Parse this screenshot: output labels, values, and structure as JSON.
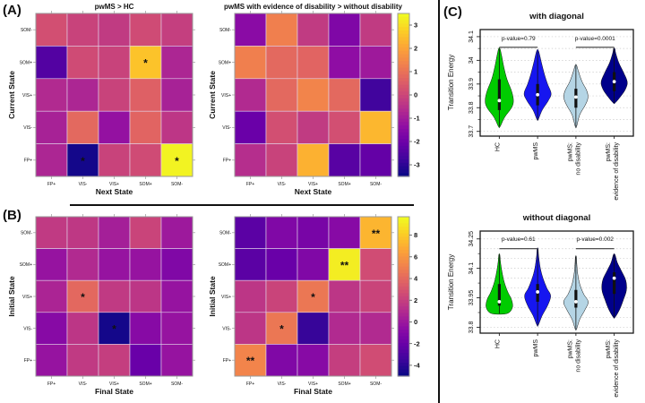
{
  "figure": {
    "panel_a_label": "(A)",
    "panel_b_label": "(B)",
    "panel_c_label": "(C)"
  },
  "colors": {
    "pvalue_text": "#ee1111",
    "significance_line": "#3a3a3a",
    "star": "#ffffff",
    "frame_gray": "#9a9a9a",
    "violin_frame": "#1a1a1a",
    "grid_dotted": "#c8c8c8"
  },
  "colormap": [
    "#0d0887",
    "#41049d",
    "#6a00a8",
    "#8f0da4",
    "#b12a90",
    "#cc4778",
    "#e16462",
    "#f2844b",
    "#fca636",
    "#fcce25",
    "#f0f921"
  ],
  "chart_data": [
    {
      "id": "A1",
      "type": "heatmap",
      "title": "pwMS > HC",
      "xlabel": "Next State",
      "ylabel": "Current State",
      "col_labels": [
        "FP+",
        "VIS-",
        "VIS+",
        "SOM+",
        "SOM-"
      ],
      "row_labels": [
        "SOM-",
        "SOM+",
        "VIS+",
        "VIS-",
        "FP+"
      ],
      "vmin": -3.5,
      "vmax": 3.5,
      "values": [
        [
          0.2,
          -0.1,
          -0.3,
          0.1,
          -0.2
        ],
        [
          -2.5,
          0.1,
          -0.1,
          2.6,
          -0.8
        ],
        [
          -0.7,
          -0.8,
          -0.1,
          0.6,
          -0.9
        ],
        [
          -0.9,
          0.8,
          -1.3,
          0.7,
          -0.4
        ],
        [
          -0.8,
          -3.4,
          -0.1,
          0.1,
          3.4
        ]
      ],
      "stars": [
        [
          1,
          3,
          "*"
        ],
        [
          4,
          1,
          "*"
        ],
        [
          4,
          4,
          "*"
        ]
      ]
    },
    {
      "id": "A2",
      "type": "heatmap",
      "title": "pwMS with evidence of disability > without disability",
      "xlabel": "Next State",
      "ylabel": "Current State",
      "col_labels": [
        "FP+",
        "VIS-",
        "VIS+",
        "SOM+",
        "SOM-"
      ],
      "row_labels": [
        "SOM-",
        "SOM+",
        "VIS+",
        "VIS-",
        "FP+"
      ],
      "vmin": -3.5,
      "vmax": 3.5,
      "values": [
        [
          -1.5,
          1.3,
          -0.3,
          -1.7,
          -0.3
        ],
        [
          1.3,
          0.8,
          0.7,
          -1.4,
          -1.1
        ],
        [
          -0.7,
          0.8,
          1.4,
          0.8,
          -2.8
        ],
        [
          -2.1,
          0.2,
          -0.3,
          0.2,
          2.4
        ],
        [
          -0.6,
          -0.1,
          2.3,
          -2.4,
          -2.2
        ]
      ],
      "stars": []
    },
    {
      "id": "B1",
      "type": "heatmap",
      "title": "",
      "xlabel": "Final State",
      "ylabel": "Initial State",
      "col_labels": [
        "FP+",
        "VIS-",
        "VIS+",
        "SOM+",
        "SOM-"
      ],
      "row_labels": [
        "SOM-",
        "SOM+",
        "VIS+",
        "VIS-",
        "FP+"
      ],
      "vmin": -5,
      "vmax": 9.7,
      "values": [
        [
          1.7,
          1.6,
          0.3,
          2.2,
          0.0
        ],
        [
          -0.3,
          0.9,
          -0.3,
          -0.3,
          -1.2
        ],
        [
          0.6,
          4.0,
          1.7,
          1.5,
          -0.3
        ],
        [
          -0.9,
          1.5,
          -4.8,
          -0.9,
          -0.3
        ],
        [
          -0.3,
          1.7,
          1.9,
          -2.1,
          -0.3
        ]
      ],
      "stars": [
        [
          2,
          1,
          "*"
        ],
        [
          3,
          2,
          "*"
        ]
      ]
    },
    {
      "id": "B2",
      "type": "heatmap",
      "title": "",
      "xlabel": "Final State",
      "ylabel": "Initial State",
      "col_labels": [
        "FP+",
        "VIS-",
        "VIS+",
        "SOM+",
        "SOM-"
      ],
      "row_labels": [
        "SOM-",
        "SOM+",
        "VIS+",
        "VIS-",
        "FP+"
      ],
      "vmin": -5,
      "vmax": 9.7,
      "values": [
        [
          -2.6,
          -1.2,
          -1.5,
          -0.9,
          7.3
        ],
        [
          -2.6,
          -2.1,
          -1.2,
          9.3,
          2.6
        ],
        [
          1.5,
          2.2,
          4.7,
          1.5,
          2.2
        ],
        [
          1.5,
          4.7,
          -3.8,
          0.9,
          0.9
        ],
        [
          5.3,
          -1.2,
          -0.9,
          1.9,
          2.6
        ]
      ],
      "stars": [
        [
          0,
          4,
          "**"
        ],
        [
          1,
          3,
          "**"
        ],
        [
          2,
          2,
          "*"
        ],
        [
          3,
          1,
          "*"
        ],
        [
          4,
          0,
          "**"
        ]
      ]
    },
    {
      "id": "CB_A",
      "type": "colorbar",
      "vmin": -3.5,
      "vmax": 3.5,
      "ticks": [
        3,
        2,
        1,
        0,
        -1,
        -2,
        -3
      ],
      "tick_labels": [
        "3",
        "2",
        "1",
        "0",
        "-1",
        "-2",
        "-3"
      ]
    },
    {
      "id": "CB_B",
      "type": "colorbar",
      "vmin": -5,
      "vmax": 9.7,
      "ticks": [
        8,
        6,
        4,
        2,
        0,
        -2,
        -4
      ],
      "tick_labels": [
        "8",
        "6",
        "4",
        "2",
        "0",
        "-2",
        "-4"
      ]
    },
    {
      "id": "C1",
      "type": "violin",
      "title": "with diagonal",
      "ylabel": "Transition Energy",
      "ylim": [
        33.68,
        34.13
      ],
      "ytick_vals": [
        33.7,
        33.8,
        33.9,
        34,
        34.1
      ],
      "ytick_labels": [
        "33.7",
        "33.8",
        "33.9",
        "34",
        "34.1"
      ],
      "grid_start": 33.7,
      "grid_step": 0.05,
      "violins": [
        {
          "label_lines": [
            "HC"
          ],
          "color": "#00cc00",
          "profile": [
            [
              33.72,
              0.05
            ],
            [
              33.76,
              0.35
            ],
            [
              33.8,
              0.8
            ],
            [
              33.83,
              0.92
            ],
            [
              33.87,
              0.8
            ],
            [
              33.92,
              0.5
            ],
            [
              33.97,
              0.3
            ],
            [
              34.02,
              0.15
            ],
            [
              34.05,
              0.04
            ]
          ],
          "q1": 33.79,
          "q3": 33.92,
          "median": 33.83
        },
        {
          "label_lines": [
            "pwMS"
          ],
          "color": "#1616f0",
          "profile": [
            [
              33.75,
              0.04
            ],
            [
              33.79,
              0.3
            ],
            [
              33.83,
              0.7
            ],
            [
              33.86,
              0.88
            ],
            [
              33.9,
              0.65
            ],
            [
              33.94,
              0.45
            ],
            [
              33.99,
              0.25
            ],
            [
              34.04,
              0.06
            ]
          ],
          "q1": 33.81,
          "q3": 33.9,
          "median": 33.855
        },
        {
          "label_lines": [
            "pwMS:",
            "no disability"
          ],
          "color": "#b5d5e5",
          "profile": [
            [
              33.72,
              0.04
            ],
            [
              33.77,
              0.25
            ],
            [
              33.81,
              0.6
            ],
            [
              33.84,
              0.78
            ],
            [
              33.87,
              0.72
            ],
            [
              33.91,
              0.4
            ],
            [
              33.95,
              0.18
            ],
            [
              33.98,
              0.04
            ]
          ],
          "q1": 33.8,
          "q3": 33.88,
          "median": 33.845
        },
        {
          "label_lines": [
            "pwMS:",
            "evidence of disability"
          ],
          "color": "#00008b",
          "profile": [
            [
              33.82,
              0.06
            ],
            [
              33.85,
              0.45
            ],
            [
              33.88,
              0.75
            ],
            [
              33.91,
              0.85
            ],
            [
              33.95,
              0.6
            ],
            [
              33.99,
              0.3
            ],
            [
              34.03,
              0.1
            ],
            [
              34.05,
              0.04
            ]
          ],
          "q1": 33.87,
          "q3": 33.95,
          "median": 33.91
        }
      ],
      "pvalues": [
        {
          "text": "p-value=0.79",
          "pair": [
            0,
            1
          ],
          "line_y": 34.055,
          "text_y": 34.085
        },
        {
          "text": "p-value=0.0001",
          "pair": [
            2,
            3
          ],
          "line_y": 34.055,
          "text_y": 34.085
        }
      ]
    },
    {
      "id": "C2",
      "type": "violin",
      "title": "without diagonal",
      "ylabel": "Transition Energy",
      "ylim": [
        33.77,
        34.29
      ],
      "ytick_vals": [
        33.8,
        33.95,
        34.1,
        34.25
      ],
      "ytick_labels": [
        "33.8",
        "33.95",
        "34.1",
        "34.25"
      ],
      "grid_start": 33.8,
      "grid_step": 0.05,
      "violins": [
        {
          "label_lines": [
            "HC"
          ],
          "color": "#00cc00",
          "profile": [
            [
              33.87,
              0.5
            ],
            [
              33.9,
              0.85
            ],
            [
              33.94,
              0.8
            ],
            [
              33.98,
              0.55
            ],
            [
              34.03,
              0.32
            ],
            [
              34.08,
              0.18
            ],
            [
              34.13,
              0.08
            ],
            [
              34.17,
              0.03
            ]
          ],
          "q1": 33.91,
          "q3": 34.02,
          "median": 33.93
        },
        {
          "label_lines": [
            "pwMS"
          ],
          "color": "#1616f0",
          "profile": [
            [
              33.81,
              0.04
            ],
            [
              33.86,
              0.3
            ],
            [
              33.91,
              0.65
            ],
            [
              33.96,
              0.85
            ],
            [
              34.0,
              0.6
            ],
            [
              34.05,
              0.35
            ],
            [
              34.1,
              0.18
            ],
            [
              34.16,
              0.07
            ],
            [
              34.2,
              0.03
            ]
          ],
          "q1": 33.93,
          "q3": 34.02,
          "median": 33.98
        },
        {
          "label_lines": [
            "pwMS:",
            "no disability"
          ],
          "color": "#b5d5e5",
          "profile": [
            [
              33.79,
              0.04
            ],
            [
              33.84,
              0.25
            ],
            [
              33.89,
              0.6
            ],
            [
              33.93,
              0.8
            ],
            [
              33.97,
              0.5
            ],
            [
              34.02,
              0.25
            ],
            [
              34.07,
              0.12
            ],
            [
              34.12,
              0.06
            ],
            [
              34.16,
              0.03
            ]
          ],
          "q1": 33.9,
          "q3": 33.99,
          "median": 33.93
        },
        {
          "label_lines": [
            "pwMS:",
            "evidence of disability"
          ],
          "color": "#00008b",
          "profile": [
            [
              33.85,
              0.05
            ],
            [
              33.89,
              0.35
            ],
            [
              33.94,
              0.6
            ],
            [
              33.99,
              0.8
            ],
            [
              34.04,
              0.75
            ],
            [
              34.09,
              0.45
            ],
            [
              34.13,
              0.2
            ],
            [
              34.17,
              0.05
            ]
          ],
          "q1": 33.97,
          "q3": 34.08,
          "median": 34.05
        }
      ],
      "pvalues": [
        {
          "text": "p-value=0.61",
          "pair": [
            0,
            1
          ],
          "line_y": 34.2,
          "text_y": 34.24
        },
        {
          "text": "p-value=0.002",
          "pair": [
            2,
            3
          ],
          "line_y": 34.2,
          "text_y": 34.24
        }
      ]
    }
  ]
}
